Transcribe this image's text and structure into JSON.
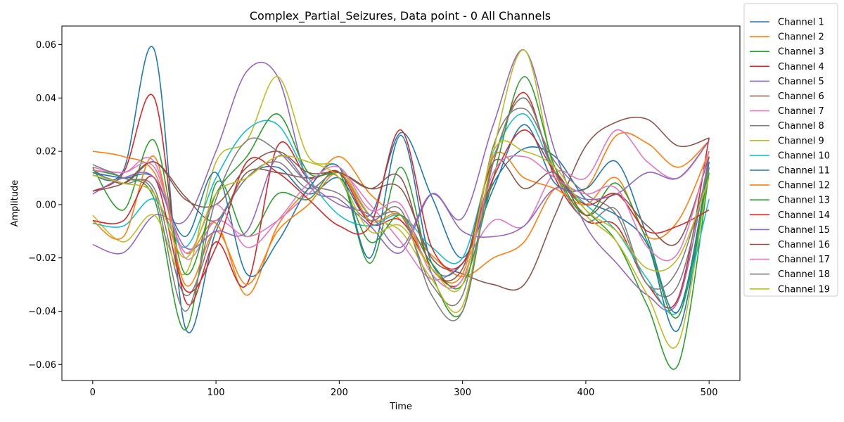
{
  "chart_data": {
    "type": "line",
    "title": "Complex_Partial_Seizures, Data point - 0 All Channels",
    "xlabel": "Time",
    "ylabel": "Amplitude",
    "xlim": [
      -25,
      525
    ],
    "ylim": [
      -0.066,
      0.067
    ],
    "xticks": [
      0,
      100,
      200,
      300,
      400,
      500
    ],
    "yticks": [
      -0.06,
      -0.04,
      -0.02,
      0.0,
      0.02,
      0.04,
      0.06
    ],
    "ytick_labels": [
      "−0.06",
      "−0.04",
      "−0.02",
      "0.00",
      "0.02",
      "0.04",
      "0.06"
    ],
    "legend_position": "outside-right-top",
    "x": [
      0,
      25,
      50,
      75,
      100,
      125,
      150,
      175,
      200,
      225,
      250,
      275,
      300,
      325,
      350,
      375,
      400,
      425,
      450,
      475,
      500
    ],
    "series": [
      {
        "name": "Channel 1",
        "color": "#1f77b4",
        "values": [
          0.011,
          0.013,
          0.058,
          -0.046,
          -0.01,
          0.01,
          0.014,
          0.004,
          0.01,
          -0.004,
          0.027,
          0.003,
          -0.02,
          0.008,
          0.021,
          0.018,
          0.002,
          -0.004,
          -0.015,
          -0.047,
          0.016
        ]
      },
      {
        "name": "Channel 2",
        "color": "#ff7f0e",
        "values": [
          0.02,
          0.018,
          0.012,
          -0.018,
          -0.007,
          -0.034,
          -0.008,
          0.006,
          0.018,
          0.004,
          -0.006,
          -0.019,
          -0.027,
          -0.02,
          -0.014,
          0.006,
          0.006,
          0.026,
          0.023,
          0.014,
          0.024
        ]
      },
      {
        "name": "Channel 3",
        "color": "#2ca02c",
        "values": [
          0.013,
          0.01,
          0.002,
          -0.047,
          0.008,
          -0.012,
          0.004,
          0.002,
          0.012,
          -0.022,
          0.014,
          -0.026,
          -0.04,
          0.016,
          0.04,
          0.012,
          -0.002,
          -0.014,
          -0.038,
          -0.06,
          0.012
        ]
      },
      {
        "name": "Channel 4",
        "color": "#d62728",
        "values": [
          0.005,
          0.012,
          0.04,
          -0.036,
          -0.014,
          -0.03,
          0.022,
          0.01,
          0.012,
          -0.007,
          -0.006,
          -0.024,
          -0.028,
          0.016,
          0.042,
          0.01,
          -0.006,
          -0.008,
          -0.03,
          -0.035,
          0.025
        ]
      },
      {
        "name": "Channel 5",
        "color": "#9467bd",
        "values": [
          -0.015,
          -0.018,
          -0.004,
          -0.006,
          0.02,
          0.05,
          0.048,
          0.008,
          0.002,
          -0.008,
          -0.018,
          0.004,
          -0.005,
          0.03,
          0.058,
          0.02,
          -0.008,
          -0.022,
          -0.034,
          -0.036,
          0.018
        ]
      },
      {
        "name": "Channel 6",
        "color": "#8c564b",
        "values": [
          0.013,
          0.008,
          0.016,
          0.003,
          -0.006,
          0.012,
          0.012,
          0.01,
          0.012,
          0.006,
          0.006,
          -0.02,
          -0.026,
          -0.03,
          -0.03,
          -0.004,
          0.022,
          0.031,
          0.032,
          0.022,
          0.025
        ]
      },
      {
        "name": "Channel 7",
        "color": "#e377c2",
        "values": [
          0.014,
          0.012,
          0.016,
          -0.02,
          -0.006,
          -0.012,
          -0.006,
          0.004,
          0.012,
          0.0,
          -0.014,
          -0.028,
          -0.022,
          -0.006,
          -0.008,
          0.012,
          0.01,
          0.028,
          0.016,
          0.01,
          0.024
        ]
      },
      {
        "name": "Channel 8",
        "color": "#7f7f7f",
        "values": [
          0.012,
          0.008,
          0.006,
          -0.034,
          -0.008,
          0.01,
          0.016,
          0.006,
          0.012,
          -0.004,
          -0.004,
          -0.03,
          -0.034,
          0.022,
          0.036,
          0.016,
          0.004,
          -0.004,
          -0.03,
          -0.03,
          0.016
        ]
      },
      {
        "name": "Channel 9",
        "color": "#bcbd22",
        "values": [
          -0.004,
          -0.014,
          -0.004,
          -0.026,
          0.016,
          0.024,
          0.048,
          0.018,
          0.014,
          -0.004,
          -0.01,
          -0.028,
          -0.038,
          0.02,
          0.058,
          0.012,
          -0.004,
          -0.014,
          -0.034,
          -0.052,
          0.014
        ]
      },
      {
        "name": "Channel 10",
        "color": "#17becf",
        "values": [
          -0.007,
          -0.008,
          0.002,
          -0.016,
          0.01,
          0.028,
          0.03,
          0.01,
          -0.004,
          -0.008,
          -0.004,
          -0.016,
          -0.02,
          0.018,
          0.034,
          0.012,
          0.0,
          -0.01,
          -0.028,
          -0.04,
          0.002
        ]
      },
      {
        "name": "Channel 11",
        "color": "#1f77b4",
        "values": [
          0.012,
          0.01,
          0.01,
          -0.012,
          0.012,
          -0.026,
          -0.014,
          0.006,
          0.014,
          -0.02,
          0.026,
          -0.022,
          -0.022,
          0.006,
          0.03,
          0.008,
          0.006,
          0.016,
          -0.012,
          -0.04,
          0.016
        ]
      },
      {
        "name": "Channel 12",
        "color": "#ff7f0e",
        "values": [
          -0.006,
          -0.012,
          0.018,
          -0.03,
          -0.01,
          -0.03,
          -0.01,
          0.0,
          0.012,
          -0.006,
          -0.004,
          -0.024,
          -0.026,
          0.018,
          0.01,
          0.006,
          0.0,
          0.01,
          -0.012,
          -0.006,
          0.02
        ]
      },
      {
        "name": "Channel 13",
        "color": "#2ca02c",
        "values": [
          0.014,
          -0.002,
          0.024,
          -0.026,
          0.004,
          0.018,
          0.034,
          0.012,
          0.01,
          -0.014,
          -0.004,
          -0.022,
          -0.03,
          0.01,
          0.048,
          0.014,
          -0.004,
          0.008,
          -0.014,
          -0.042,
          0.014
        ]
      },
      {
        "name": "Channel 14",
        "color": "#d62728",
        "values": [
          -0.006,
          -0.006,
          0.01,
          -0.032,
          -0.016,
          0.016,
          0.012,
          0.002,
          -0.008,
          -0.008,
          0.028,
          -0.016,
          -0.022,
          0.01,
          0.028,
          0.012,
          0.0,
          0.004,
          -0.01,
          -0.008,
          -0.002
        ]
      },
      {
        "name": "Channel 15",
        "color": "#9467bd",
        "values": [
          0.004,
          0.01,
          0.01,
          -0.016,
          -0.01,
          -0.01,
          0.018,
          0.008,
          0.0,
          -0.004,
          -0.016,
          0.004,
          -0.01,
          -0.012,
          -0.008,
          0.006,
          0.002,
          0.004,
          0.012,
          0.01,
          0.024
        ]
      },
      {
        "name": "Channel 16",
        "color": "#8c564b",
        "values": [
          0.005,
          0.008,
          0.016,
          0.002,
          0.0,
          0.014,
          0.02,
          0.012,
          0.012,
          0.006,
          0.01,
          -0.024,
          -0.024,
          0.016,
          0.006,
          0.012,
          -0.004,
          0.004,
          -0.008,
          -0.014,
          0.018
        ]
      },
      {
        "name": "Channel 17",
        "color": "#e377c2",
        "values": [
          0.013,
          0.012,
          0.014,
          -0.018,
          0.0,
          -0.016,
          -0.006,
          0.008,
          0.014,
          -0.002,
          0.0,
          -0.026,
          -0.028,
          0.012,
          0.018,
          0.01,
          0.004,
          0.006,
          -0.016,
          -0.018,
          0.02
        ]
      },
      {
        "name": "Channel 18",
        "color": "#7f7f7f",
        "values": [
          0.015,
          0.01,
          0.004,
          -0.04,
          0.002,
          0.024,
          0.02,
          0.008,
          0.004,
          -0.006,
          -0.002,
          -0.034,
          -0.04,
          0.016,
          0.04,
          0.012,
          -0.006,
          -0.002,
          -0.03,
          -0.024,
          0.014
        ]
      },
      {
        "name": "Channel 19",
        "color": "#bcbd22",
        "values": [
          0.011,
          0.008,
          0.004,
          -0.02,
          0.004,
          0.01,
          0.018,
          0.016,
          0.01,
          -0.01,
          -0.008,
          -0.024,
          -0.03,
          0.02,
          0.02,
          0.014,
          -0.002,
          -0.01,
          -0.024,
          -0.02,
          0.01
        ]
      }
    ]
  }
}
